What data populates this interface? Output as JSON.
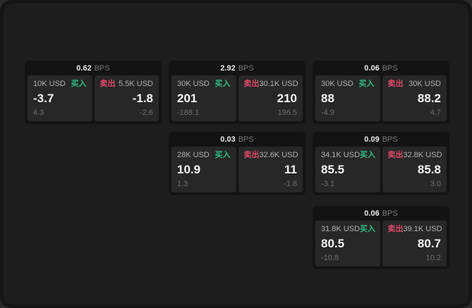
{
  "page": {
    "bps_suffix": "BPS",
    "buy_label": "买入",
    "sell_label": "卖出",
    "colors": {
      "buy": "#2ebd85",
      "sell": "#dd4a68",
      "card_bg": "#131313",
      "panel_bg": "#272727",
      "content_bg": "#1d1d1d"
    }
  },
  "cards": [
    {
      "row": 0,
      "col": 0,
      "bps": "0.62",
      "buy": {
        "amount": "10K USD",
        "price": "-3.7",
        "delta": "4.3"
      },
      "sell": {
        "amount": "5.5K USD",
        "price": "-1.8",
        "delta": "-2.6"
      }
    },
    {
      "row": 0,
      "col": 1,
      "bps": "2.92",
      "buy": {
        "amount": "30K USD",
        "price": "201",
        "delta": "-188.1"
      },
      "sell": {
        "amount": "30.1K USD",
        "price": "210",
        "delta": "196.5"
      }
    },
    {
      "row": 0,
      "col": 2,
      "bps": "0.06",
      "buy": {
        "amount": "30K USD",
        "price": "88",
        "delta": "-4.9"
      },
      "sell": {
        "amount": "30K USD",
        "price": "88.2",
        "delta": "4.7"
      }
    },
    {
      "row": 1,
      "col": 1,
      "bps": "0.03",
      "buy": {
        "amount": "28K USD",
        "price": "10.9",
        "delta": "1.3"
      },
      "sell": {
        "amount": "32.6K USD",
        "price": "11",
        "delta": "-1.8"
      }
    },
    {
      "row": 1,
      "col": 2,
      "bps": "0.09",
      "buy": {
        "amount": "34.1K USD",
        "price": "85.5",
        "delta": "-3.1"
      },
      "sell": {
        "amount": "32.8K USD",
        "price": "85.8",
        "delta": "3.0"
      }
    },
    {
      "row": 2,
      "col": 2,
      "bps": "0.06",
      "buy": {
        "amount": "31.8K USD",
        "price": "80.5",
        "delta": "-10.8"
      },
      "sell": {
        "amount": "39.1K USD",
        "price": "80.7",
        "delta": "10.2"
      }
    }
  ]
}
